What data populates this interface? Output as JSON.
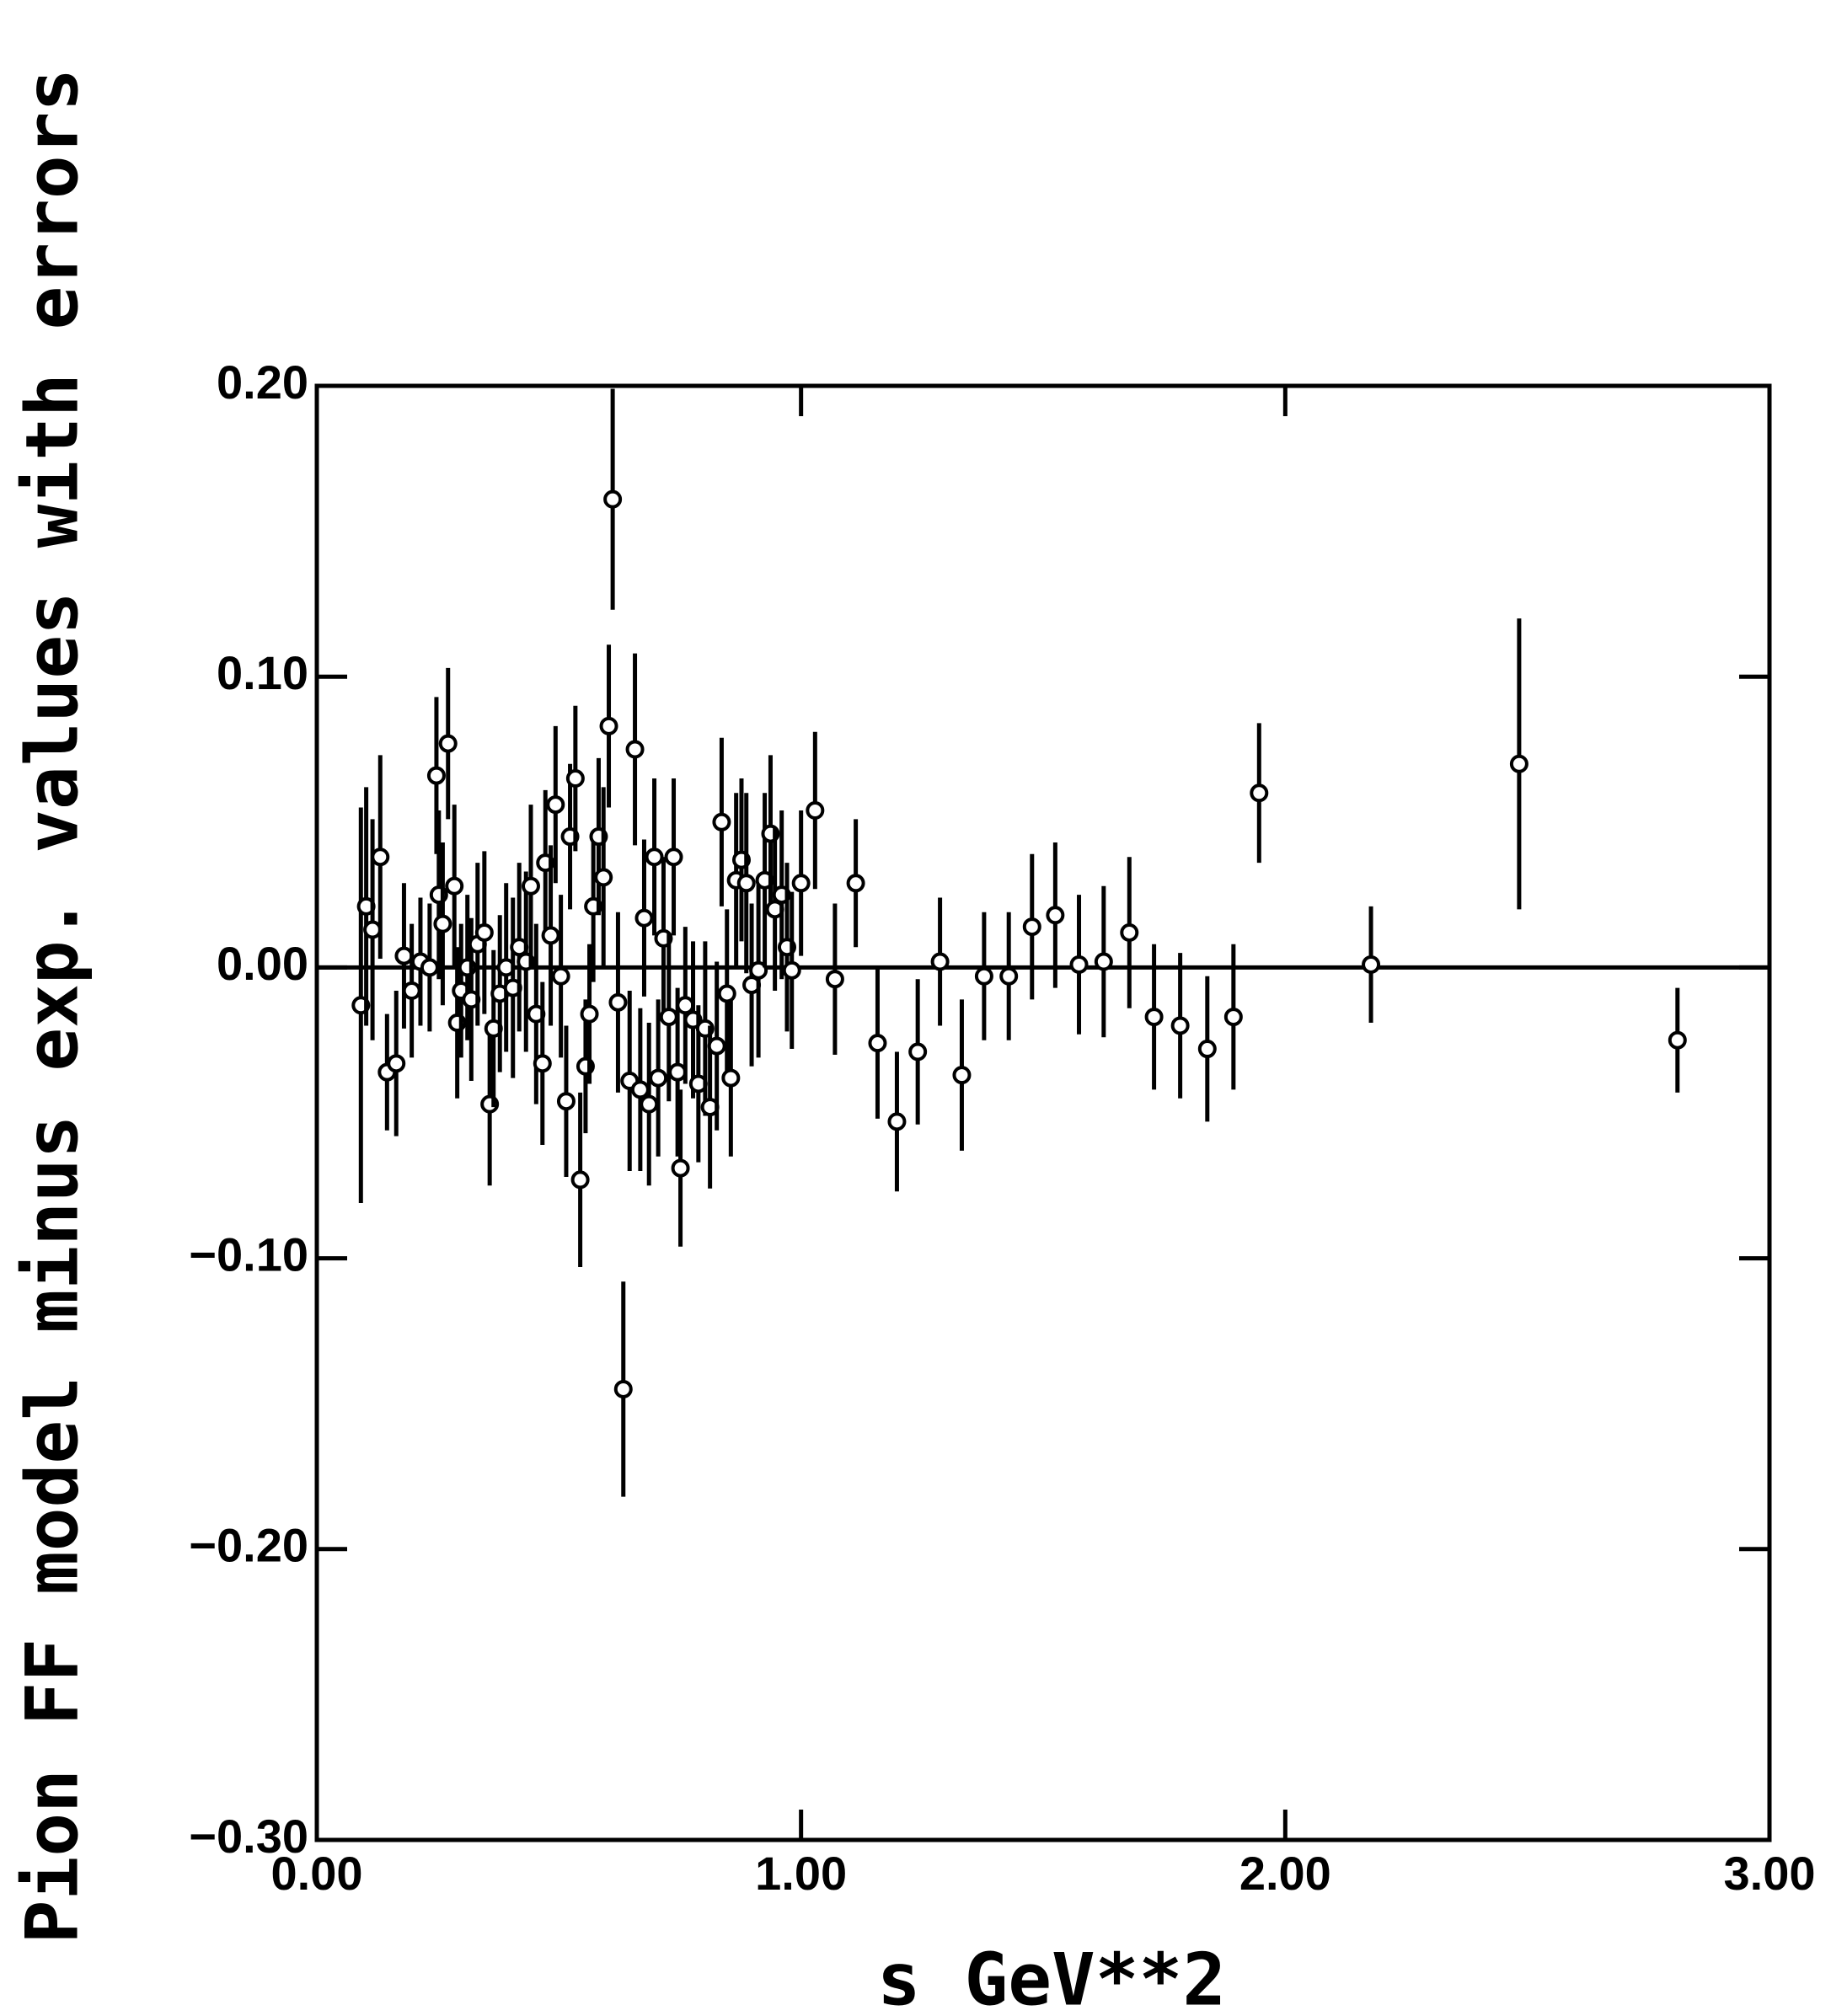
{
  "chart_data": {
    "type": "scatter",
    "x_label": "s GeV**2",
    "y_label": "Pion FF model minus exp. values with errors",
    "xlim": [
      0,
      3
    ],
    "ylim": [
      -0.3,
      0.2
    ],
    "xticks": [
      {
        "value": 0,
        "label": "0.00"
      },
      {
        "value": 1,
        "label": "1.00"
      },
      {
        "value": 2,
        "label": "2.00"
      },
      {
        "value": 3,
        "label": "3.00"
      }
    ],
    "yticks": [
      {
        "value": -0.3,
        "label": "−0.30"
      },
      {
        "value": -0.2,
        "label": "−0.20"
      },
      {
        "value": -0.1,
        "label": "−0.10"
      },
      {
        "value": 0,
        "label": "0.00"
      },
      {
        "value": 0.1,
        "label": "0.10"
      },
      {
        "value": 0.2,
        "label": "0.20"
      }
    ],
    "color": "#000000",
    "zero_line": true,
    "x": [
      0.091,
      0.102,
      0.115,
      0.131,
      0.145,
      0.164,
      0.18,
      0.196,
      0.214,
      0.233,
      0.247,
      0.252,
      0.26,
      0.271,
      0.284,
      0.29,
      0.298,
      0.311,
      0.319,
      0.332,
      0.346,
      0.357,
      0.365,
      0.378,
      0.391,
      0.405,
      0.418,
      0.432,
      0.442,
      0.453,
      0.466,
      0.472,
      0.483,
      0.493,
      0.504,
      0.515,
      0.523,
      0.534,
      0.544,
      0.555,
      0.563,
      0.571,
      0.582,
      0.592,
      0.603,
      0.611,
      0.622,
      0.633,
      0.646,
      0.657,
      0.668,
      0.676,
      0.686,
      0.697,
      0.705,
      0.716,
      0.727,
      0.737,
      0.745,
      0.751,
      0.761,
      0.777,
      0.788,
      0.802,
      0.812,
      0.826,
      0.836,
      0.847,
      0.855,
      0.866,
      0.877,
      0.887,
      0.898,
      0.912,
      0.925,
      0.937,
      0.946,
      0.96,
      0.971,
      0.981,
      1.0,
      1.029,
      1.07,
      1.113,
      1.158,
      1.198,
      1.241,
      1.287,
      1.332,
      1.378,
      1.429,
      1.477,
      1.525,
      1.574,
      1.625,
      1.678,
      1.729,
      1.783,
      1.839,
      1.893,
      1.946,
      2.177,
      2.483,
      2.81
    ],
    "values": [
      -0.013,
      0.021,
      0.013,
      0.038,
      -0.036,
      -0.033,
      0.004,
      -0.008,
      0.002,
      0,
      0.066,
      0.025,
      0.015,
      0.077,
      0.028,
      -0.019,
      -0.008,
      0,
      -0.011,
      0.008,
      0.012,
      -0.047,
      -0.021,
      -0.009,
      0,
      -0.007,
      0.007,
      0.002,
      0.028,
      -0.016,
      -0.033,
      0.036,
      0.011,
      0.056,
      -0.003,
      -0.046,
      0.045,
      0.065,
      -0.073,
      -0.034,
      -0.016,
      0.021,
      0.045,
      0.031,
      0.083,
      0.161,
      -0.012,
      -0.145,
      -0.039,
      0.075,
      -0.042,
      0.017,
      -0.047,
      0.038,
      -0.038,
      0.01,
      -0.017,
      0.038,
      -0.036,
      -0.069,
      -0.013,
      -0.018,
      -0.04,
      -0.021,
      -0.048,
      -0.027,
      0.05,
      -0.009,
      -0.038,
      0.03,
      0.037,
      0.029,
      -0.006,
      -0.001,
      0.03,
      0.046,
      0.02,
      0.025,
      0.007,
      -0.001,
      0.029,
      0.054,
      -0.004,
      0.029,
      -0.026,
      -0.053,
      -0.029,
      0.002,
      -0.037,
      -0.003,
      -0.003,
      0.014,
      0.018,
      0.001,
      0.002,
      0.012,
      -0.017,
      -0.02,
      -0.028,
      -0.017,
      0.06,
      0.001,
      0.07,
      -0.025
    ],
    "errors": [
      0.068,
      0.041,
      0.038,
      0.035,
      0.02,
      0.025,
      0.025,
      0.023,
      0.022,
      0.022,
      0.027,
      0.029,
      0.028,
      0.026,
      0.028,
      0.026,
      0.023,
      0.025,
      0.028,
      0.028,
      0.028,
      0.028,
      0.027,
      0.027,
      0.029,
      0.031,
      0.029,
      0.031,
      0.028,
      0.031,
      0.028,
      0.025,
      0.031,
      0.027,
      0.028,
      0.026,
      0.025,
      0.025,
      0.03,
      0.023,
      0.024,
      0.026,
      0.027,
      0.031,
      0.028,
      0.038,
      0.031,
      0.037,
      0.031,
      0.033,
      0.028,
      0.027,
      0.028,
      0.027,
      0.027,
      0.028,
      0.029,
      0.027,
      0.029,
      0.027,
      0.027,
      0.027,
      0.027,
      0.03,
      0.028,
      0.029,
      0.029,
      0.029,
      0.027,
      0.03,
      0.028,
      0.031,
      0.028,
      0.03,
      0.03,
      0.027,
      0.028,
      0.029,
      0.029,
      0.027,
      0.025,
      0.027,
      0.026,
      0.022,
      0.026,
      0.024,
      0.025,
      0.022,
      0.026,
      0.022,
      0.022,
      0.025,
      0.025,
      0.024,
      0.026,
      0.026,
      0.025,
      0.025,
      0.025,
      0.025,
      0.024,
      0.02,
      0.05,
      0.018
    ]
  }
}
